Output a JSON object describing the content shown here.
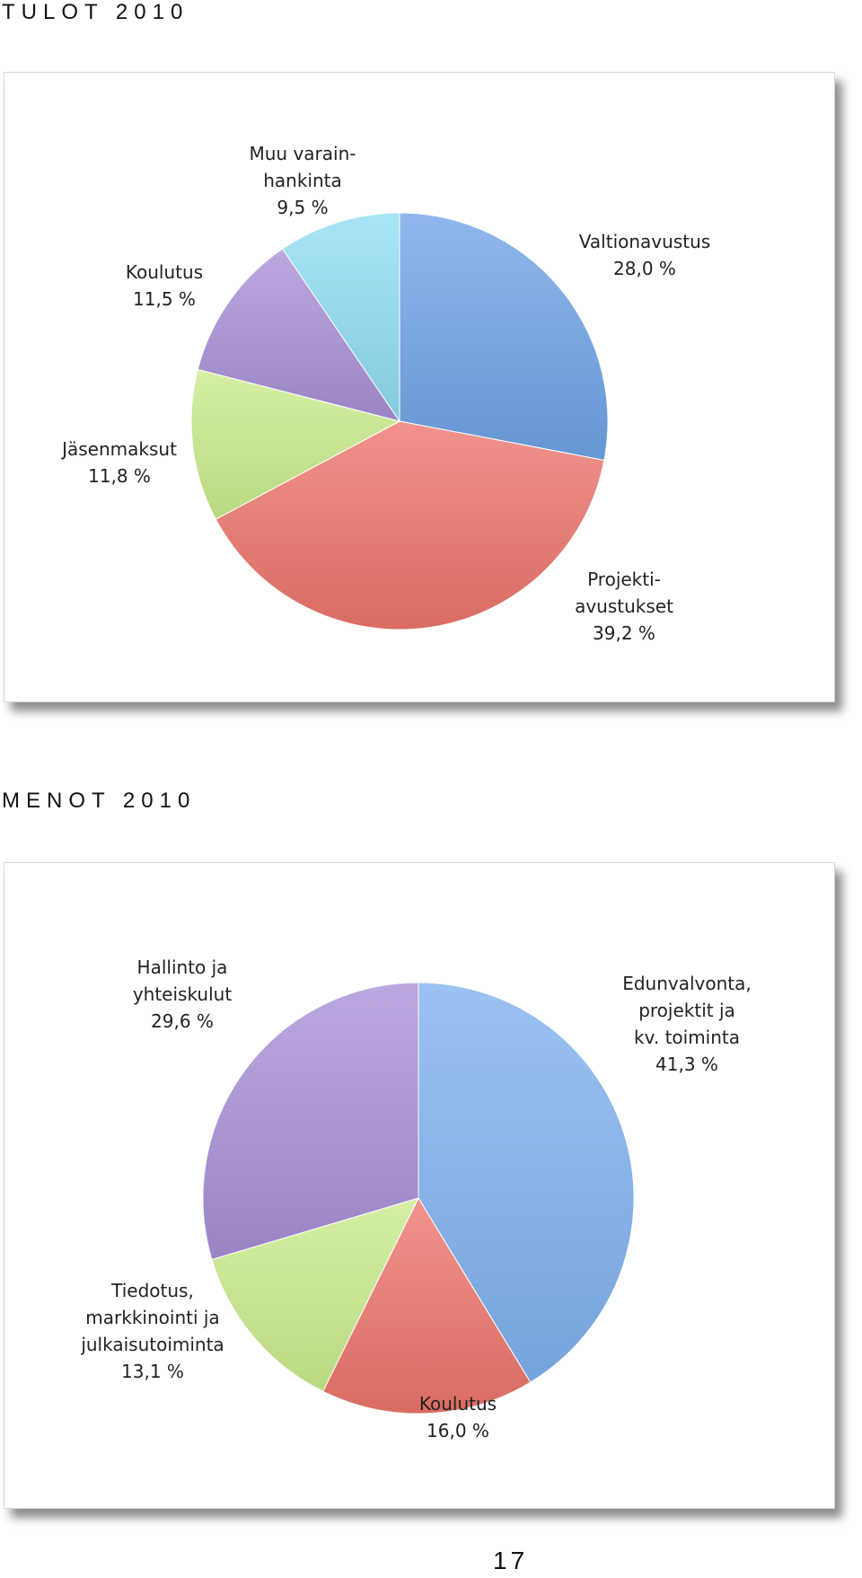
{
  "chart_data": [
    {
      "type": "pie",
      "title": "TULOT 2010",
      "start_angle_deg": 0,
      "direction": "clockwise",
      "slices": [
        {
          "name": "Valtionavustus",
          "value": 28.0,
          "label_lines": [
            "Valtionavustus",
            "28,0 %"
          ],
          "color": "#6fa3e6"
        },
        {
          "name": "Projektiavustukset",
          "value": 39.2,
          "label_lines": [
            "Projekti-",
            "avustukset",
            "39,2 %"
          ],
          "color": "#ec756b"
        },
        {
          "name": "Jäsenmaksut",
          "value": 11.8,
          "label_lines": [
            "Jäsenmaksut",
            "11,8 %"
          ],
          "color": "#c9ec8c"
        },
        {
          "name": "Koulutus",
          "value": 11.5,
          "label_lines": [
            "Koulutus",
            "11,5 %"
          ],
          "color": "#a98fd6"
        },
        {
          "name": "Muu varainhankinta",
          "value": 9.5,
          "label_lines": [
            "Muu varain-",
            "hankinta",
            "9,5 %"
          ],
          "color": "#8fdcf4"
        }
      ]
    },
    {
      "type": "pie",
      "title": "MENOT 2010",
      "start_angle_deg": 0,
      "direction": "clockwise",
      "slices": [
        {
          "name": "Edunvalvonta, projektit ja kv. toiminta",
          "value": 41.3,
          "label_lines": [
            "Edunvalvonta,",
            "projektit ja",
            "kv. toiminta",
            "41,3 %"
          ],
          "color": "#7fb1ee"
        },
        {
          "name": "Koulutus",
          "value": 16.0,
          "label_lines": [
            "Koulutus",
            "16,0 %"
          ],
          "color": "#ec756b"
        },
        {
          "name": "Tiedotus, markkinointi ja julkaisutoiminta",
          "value": 13.1,
          "label_lines": [
            "Tiedotus,",
            "markkinointi ja",
            "julkaisutoiminta",
            "13,1 %"
          ],
          "color": "#c9ec8c"
        },
        {
          "name": "Hallinto ja yhteiskulut",
          "value": 29.6,
          "label_lines": [
            "Hallinto ja",
            "yhteiskulut",
            "29,6 %"
          ],
          "color": "#a98fd6"
        }
      ]
    }
  ],
  "page_number": "17"
}
